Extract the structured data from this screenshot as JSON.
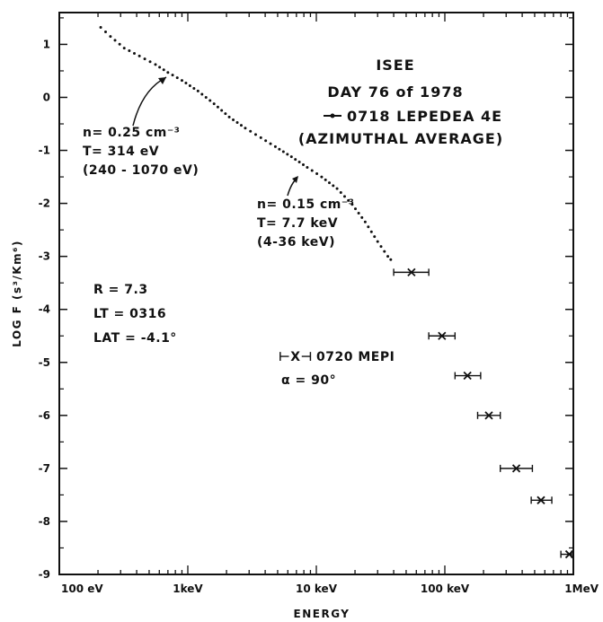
{
  "chart_data": {
    "type": "scatter",
    "title_lines": [
      "ISEE",
      "DAY 76 of 1978",
      "0718 LEPEDEA 4E",
      "(AZIMUTHAL AVERAGE)"
    ],
    "xlabel": "ENERGY",
    "ylabel": "LOG F (s³/Km⁶)",
    "xscale": "log",
    "xlim": [
      100,
      1000000
    ],
    "ylim": [
      -9,
      1.6
    ],
    "x_ticks": [
      {
        "value": 100,
        "label": "100 eV"
      },
      {
        "value": 1000,
        "label": "1keV"
      },
      {
        "value": 10000,
        "label": "10 keV"
      },
      {
        "value": 100000,
        "label": "100 keV"
      },
      {
        "value": 1000000,
        "label": "1MeV"
      }
    ],
    "y_ticks": [
      1,
      0,
      -1,
      -2,
      -3,
      -4,
      -5,
      -6,
      -7,
      -8,
      -9
    ],
    "series": [
      {
        "name": "0718 LEPEDEA 4E",
        "style": "dotted-line",
        "points": [
          {
            "x": 210,
            "y": 1.32
          },
          {
            "x": 250,
            "y": 1.15
          },
          {
            "x": 320,
            "y": 0.93
          },
          {
            "x": 420,
            "y": 0.78
          },
          {
            "x": 560,
            "y": 0.62
          },
          {
            "x": 700,
            "y": 0.47
          },
          {
            "x": 900,
            "y": 0.32
          },
          {
            "x": 1200,
            "y": 0.12
          },
          {
            "x": 1600,
            "y": -0.12
          },
          {
            "x": 2100,
            "y": -0.37
          },
          {
            "x": 2800,
            "y": -0.58
          },
          {
            "x": 3700,
            "y": -0.76
          },
          {
            "x": 4800,
            "y": -0.93
          },
          {
            "x": 6400,
            "y": -1.12
          },
          {
            "x": 8500,
            "y": -1.32
          },
          {
            "x": 11000,
            "y": -1.5
          },
          {
            "x": 14500,
            "y": -1.72
          },
          {
            "x": 19000,
            "y": -2.02
          },
          {
            "x": 24000,
            "y": -2.35
          },
          {
            "x": 30000,
            "y": -2.72
          },
          {
            "x": 36000,
            "y": -3.0
          },
          {
            "x": 40000,
            "y": -3.12
          }
        ]
      },
      {
        "name": "0720 MEPI",
        "style": "x-with-bars",
        "points": [
          {
            "x": 55000,
            "y": -3.3,
            "xmin": 40000,
            "xmax": 75000
          },
          {
            "x": 95000,
            "y": -4.5,
            "xmin": 75000,
            "xmax": 120000
          },
          {
            "x": 150000,
            "y": -5.25,
            "xmin": 120000,
            "xmax": 190000
          },
          {
            "x": 220000,
            "y": -6.0,
            "xmin": 180000,
            "xmax": 270000
          },
          {
            "x": 360000,
            "y": -7.0,
            "xmin": 270000,
            "xmax": 480000
          },
          {
            "x": 560000,
            "y": -7.6,
            "xmin": 470000,
            "xmax": 680000
          },
          {
            "x": 930000,
            "y": -8.62,
            "xmin": 800000,
            "xmax": 1050000
          }
        ]
      }
    ],
    "annotations": {
      "fit_low": [
        "n= 0.25 cm⁻³",
        "T= 314 eV",
        "(240 - 1070 eV)"
      ],
      "fit_high": [
        "n= 0.15 cm⁻³",
        "T= 7.7 keV",
        "(4-36 keV)"
      ],
      "location": [
        "R = 7.3",
        "LT = 0316",
        "LAT = -4.1°"
      ],
      "mepi_legend": [
        "0720 MEPI",
        "α = 90°"
      ],
      "mepi_marker": "⊢X⊣"
    }
  }
}
